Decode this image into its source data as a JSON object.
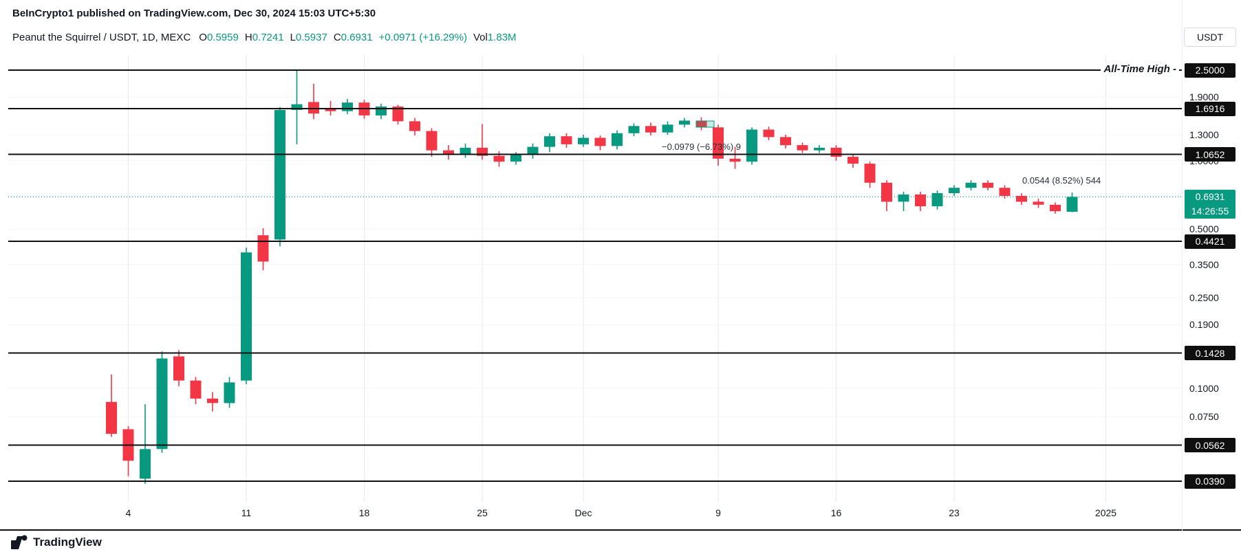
{
  "header": {
    "published_line": "BeInCrypto1 published on TradingView.com, Dec 30, 2024 15:03 UTC+5:30"
  },
  "legend": {
    "title": "Peanut the Squirrel / USDT, 1D, MEXC",
    "o_label": "O",
    "o_value": "0.5959",
    "h_label": "H",
    "h_value": "0.7241",
    "l_label": "L",
    "l_value": "0.5937",
    "c_label": "C",
    "c_value": "0.6931",
    "change": "+0.0971 (+16.29%)",
    "vol_label": "Vol",
    "vol_value": "1.83M"
  },
  "currency_button": {
    "label": "USDT"
  },
  "annotations": {
    "ath_label": "All-Time High -",
    "measure_down": "−0.0979 (−6.73%) 9",
    "measure_up": "0.0544 (8.52%) 544"
  },
  "price_scale": {
    "plain_labels": [
      "1.9000",
      "1.3000",
      "1.0000",
      "0.5000",
      "0.3500",
      "0.2500",
      "0.1900",
      "0.1000",
      "0.0750"
    ],
    "level_badges": [
      "2.5000",
      "1.6916",
      "1.0652",
      "0.4421",
      "0.1428",
      "0.0562",
      "0.0390"
    ],
    "current_badge": {
      "price": "0.6931",
      "countdown": "14:26:55"
    }
  },
  "x_axis": {
    "labels": [
      {
        "text": "4",
        "day": 1
      },
      {
        "text": "11",
        "day": 8
      },
      {
        "text": "18",
        "day": 15
      },
      {
        "text": "25",
        "day": 22
      },
      {
        "text": "Dec",
        "day": 28,
        "major": true
      },
      {
        "text": "9",
        "day": 36
      },
      {
        "text": "16",
        "day": 43
      },
      {
        "text": "23",
        "day": 50
      },
      {
        "text": "2025",
        "day": 59,
        "major": true
      }
    ]
  },
  "footer": {
    "brand": "TradingView"
  },
  "colors": {
    "up": "#089981",
    "down": "#f23645",
    "line": "#0f0f0f",
    "grid": "#e4e7ed",
    "grid_h": "#f3f5f8",
    "current": "#089981"
  },
  "chart_data": {
    "type": "candlestick",
    "title": "Peanut the Squirrel / USDT, 1D, MEXC",
    "interval": "1D",
    "exchange": "MEXC",
    "scale": "logarithmic",
    "start_date": "2024-11-03",
    "y_range": [
      0.039,
      2.5
    ],
    "all_time_high": 2.5,
    "horizontal_levels": [
      2.5,
      1.6916,
      1.0652,
      0.4421,
      0.1428,
      0.0562,
      0.039
    ],
    "current_price": 0.6931,
    "last_candle": {
      "open": 0.5959,
      "high": 0.7241,
      "low": 0.5937,
      "close": 0.6931,
      "change": "+0.0971 (+16.29%)",
      "volume": "1.83M"
    },
    "candles_ohlc": [
      [
        0.087,
        0.115,
        0.061,
        0.063
      ],
      [
        0.066,
        0.068,
        0.041,
        0.048
      ],
      [
        0.04,
        0.085,
        0.038,
        0.054
      ],
      [
        0.054,
        0.145,
        0.052,
        0.135
      ],
      [
        0.138,
        0.147,
        0.102,
        0.108
      ],
      [
        0.108,
        0.112,
        0.085,
        0.09
      ],
      [
        0.09,
        0.096,
        0.079,
        0.086
      ],
      [
        0.086,
        0.112,
        0.082,
        0.106
      ],
      [
        0.108,
        0.415,
        0.104,
        0.395
      ],
      [
        0.47,
        0.505,
        0.33,
        0.36
      ],
      [
        0.45,
        1.72,
        0.42,
        1.67
      ],
      [
        1.67,
        2.5,
        1.18,
        1.77
      ],
      [
        1.81,
        2.18,
        1.52,
        1.61
      ],
      [
        1.7,
        1.83,
        1.58,
        1.65
      ],
      [
        1.65,
        1.87,
        1.6,
        1.8
      ],
      [
        1.8,
        1.85,
        1.53,
        1.58
      ],
      [
        1.58,
        1.78,
        1.52,
        1.73
      ],
      [
        1.73,
        1.76,
        1.44,
        1.49
      ],
      [
        1.49,
        1.54,
        1.29,
        1.35
      ],
      [
        1.35,
        1.39,
        1.04,
        1.11
      ],
      [
        1.11,
        1.17,
        1.01,
        1.06
      ],
      [
        1.06,
        1.19,
        1.03,
        1.14
      ],
      [
        1.14,
        1.45,
        1.01,
        1.05
      ],
      [
        1.05,
        1.1,
        0.94,
        0.99
      ],
      [
        0.99,
        1.09,
        0.96,
        1.06
      ],
      [
        1.06,
        1.19,
        1.02,
        1.15
      ],
      [
        1.15,
        1.32,
        1.09,
        1.28
      ],
      [
        1.28,
        1.32,
        1.14,
        1.18
      ],
      [
        1.18,
        1.3,
        1.15,
        1.26
      ],
      [
        1.26,
        1.29,
        1.11,
        1.16
      ],
      [
        1.16,
        1.36,
        1.12,
        1.32
      ],
      [
        1.32,
        1.46,
        1.28,
        1.42
      ],
      [
        1.42,
        1.47,
        1.29,
        1.33
      ],
      [
        1.33,
        1.49,
        1.3,
        1.44
      ],
      [
        1.44,
        1.54,
        1.4,
        1.5
      ],
      [
        1.5,
        1.55,
        1.36,
        1.4
      ],
      [
        1.4,
        1.44,
        0.95,
        1.02
      ],
      [
        1.02,
        1.15,
        0.92,
        0.99
      ],
      [
        0.99,
        1.4,
        0.96,
        1.37
      ],
      [
        1.37,
        1.41,
        1.23,
        1.27
      ],
      [
        1.27,
        1.3,
        1.13,
        1.17
      ],
      [
        1.17,
        1.2,
        1.08,
        1.11
      ],
      [
        1.11,
        1.17,
        1.08,
        1.14
      ],
      [
        1.14,
        1.17,
        1.0,
        1.04
      ],
      [
        1.04,
        1.07,
        0.93,
        0.97
      ],
      [
        0.97,
        0.99,
        0.76,
        0.8
      ],
      [
        0.8,
        0.82,
        0.6,
        0.66
      ],
      [
        0.66,
        0.73,
        0.6,
        0.71
      ],
      [
        0.71,
        0.73,
        0.6,
        0.63
      ],
      [
        0.63,
        0.74,
        0.61,
        0.72
      ],
      [
        0.72,
        0.78,
        0.7,
        0.76
      ],
      [
        0.76,
        0.82,
        0.74,
        0.8
      ],
      [
        0.8,
        0.82,
        0.74,
        0.76
      ],
      [
        0.76,
        0.78,
        0.68,
        0.7
      ],
      [
        0.7,
        0.72,
        0.64,
        0.66
      ],
      [
        0.66,
        0.68,
        0.62,
        0.64
      ],
      [
        0.64,
        0.655,
        0.585,
        0.6
      ],
      [
        0.5959,
        0.7241,
        0.5937,
        0.6931
      ]
    ]
  }
}
